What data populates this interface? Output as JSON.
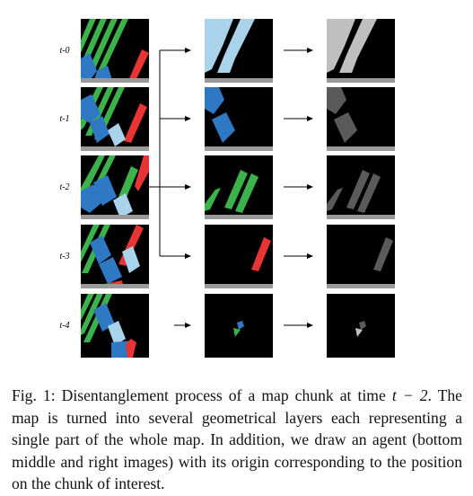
{
  "figure": {
    "row_labels": [
      "t-0",
      "t-1",
      "t-2",
      "t-3",
      "t-4"
    ],
    "colors": {
      "lane_green": "#3bb34a",
      "block_blue": "#2f78c4",
      "light_blue": "#a9d3ea",
      "red": "#e83434",
      "gray_light": "#bfbfbf",
      "gray_dark": "#5a5a5a",
      "black": "#000000",
      "separator": "#9a9a9a"
    }
  },
  "caption": {
    "label": "Fig. 1:",
    "text_before_math": "Disentanglement process of a map chunk at time",
    "math": "t − 2",
    "text_after_math": ". The map is turned into several geometrical layers each representing a single part of the whole map. In addition, we draw an agent (bottom middle and right images) with its origin corresponding to the position on the chunk of interest."
  }
}
